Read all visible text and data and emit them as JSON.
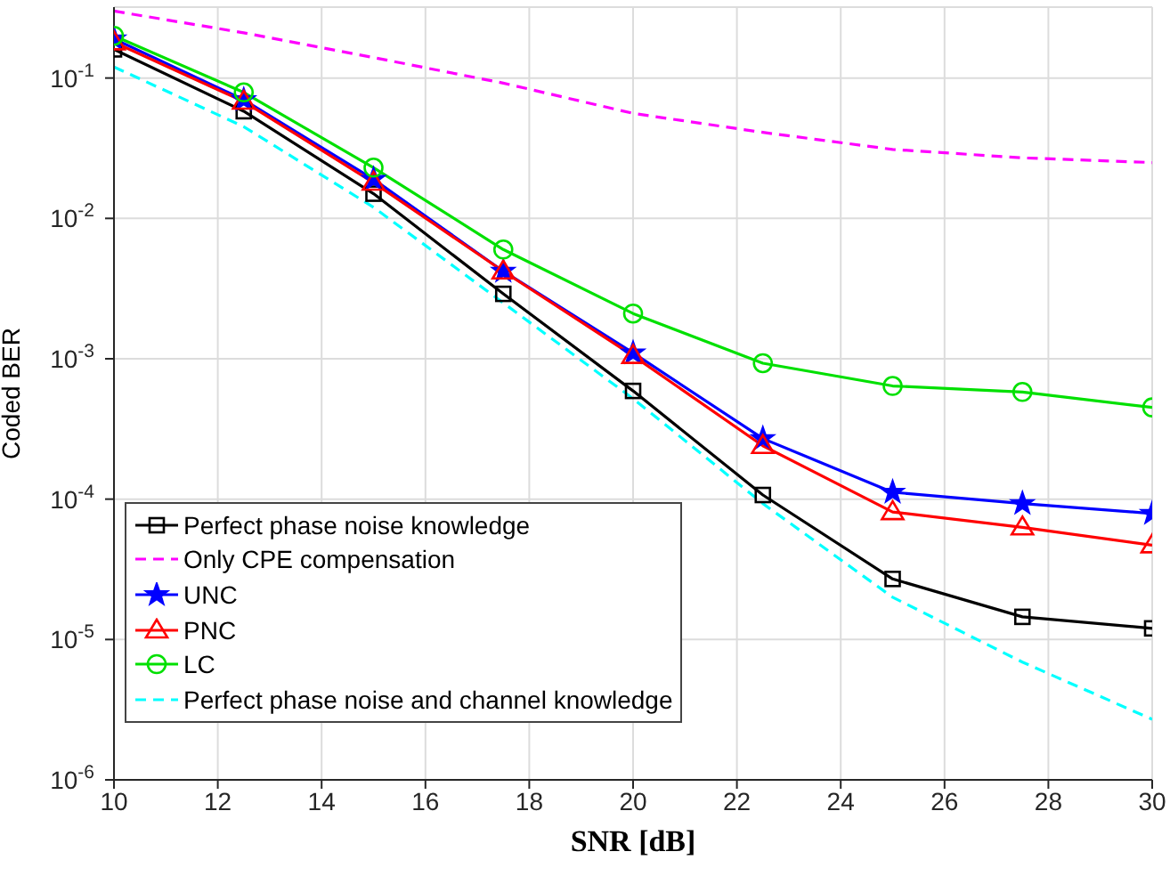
{
  "chart_data": {
    "type": "line",
    "xlabel": "SNR [dB]",
    "ylabel": "Coded BER",
    "x": [
      10,
      12.5,
      15,
      17.5,
      20,
      22.5,
      25,
      27.5,
      30
    ],
    "xlim": [
      10,
      30
    ],
    "xticks": [
      10,
      12,
      14,
      16,
      18,
      20,
      22,
      24,
      26,
      28,
      30
    ],
    "ylim": [
      1e-06,
      0.32
    ],
    "yticks": [
      {
        "value": 1e-06,
        "label": "10$^{-6}$"
      },
      {
        "value": 1e-05,
        "label": "10$^{-5}$"
      },
      {
        "value": 0.0001,
        "label": "10$^{-4}$"
      },
      {
        "value": 0.001,
        "label": "10$^{-3}$"
      },
      {
        "value": 0.01,
        "label": "10$^{-2}$"
      },
      {
        "value": 0.1,
        "label": "10$^{-1}$"
      }
    ],
    "log": true,
    "grid": true,
    "legend": "bottom left",
    "series": [
      {
        "name": "Perfect phase noise knowledge",
        "color": "#000000",
        "marker": "square",
        "line_style": "solid",
        "values": [
          0.16,
          0.058,
          0.015,
          0.0029,
          0.00059,
          0.000107,
          2.7e-05,
          1.45e-05,
          1.2e-05
        ]
      },
      {
        "name": "Only CPE compensation",
        "color": "#ff00ff",
        "marker": "none",
        "line_style": "dashed",
        "values": [
          0.3,
          0.21,
          0.14,
          0.092,
          0.056,
          0.041,
          0.031,
          0.027,
          0.025
        ]
      },
      {
        "name": "UNC",
        "color": "#0000ff",
        "marker": "star",
        "line_style": "solid",
        "values": [
          0.19,
          0.07,
          0.019,
          0.0042,
          0.0011,
          0.00027,
          0.000112,
          9.3e-05,
          7.9e-05
        ]
      },
      {
        "name": "PNC",
        "color": "#ff0000",
        "marker": "triangle",
        "line_style": "solid",
        "values": [
          0.18,
          0.068,
          0.018,
          0.0042,
          0.00105,
          0.00024,
          8.1e-05,
          6.3e-05,
          4.7e-05
        ]
      },
      {
        "name": "LC",
        "color": "#00e000",
        "marker": "circle",
        "line_style": "solid",
        "values": [
          0.2,
          0.079,
          0.023,
          0.006,
          0.0021,
          0.00093,
          0.00064,
          0.00058,
          0.00045
        ]
      },
      {
        "name": "Perfect phase noise and channel knowledge",
        "color": "#00ffff",
        "marker": "none",
        "line_style": "dashed",
        "values": [
          0.12,
          0.045,
          0.012,
          0.0025,
          0.00052,
          9.3e-05,
          2e-05,
          6.9e-06,
          2.7e-06
        ]
      }
    ]
  }
}
